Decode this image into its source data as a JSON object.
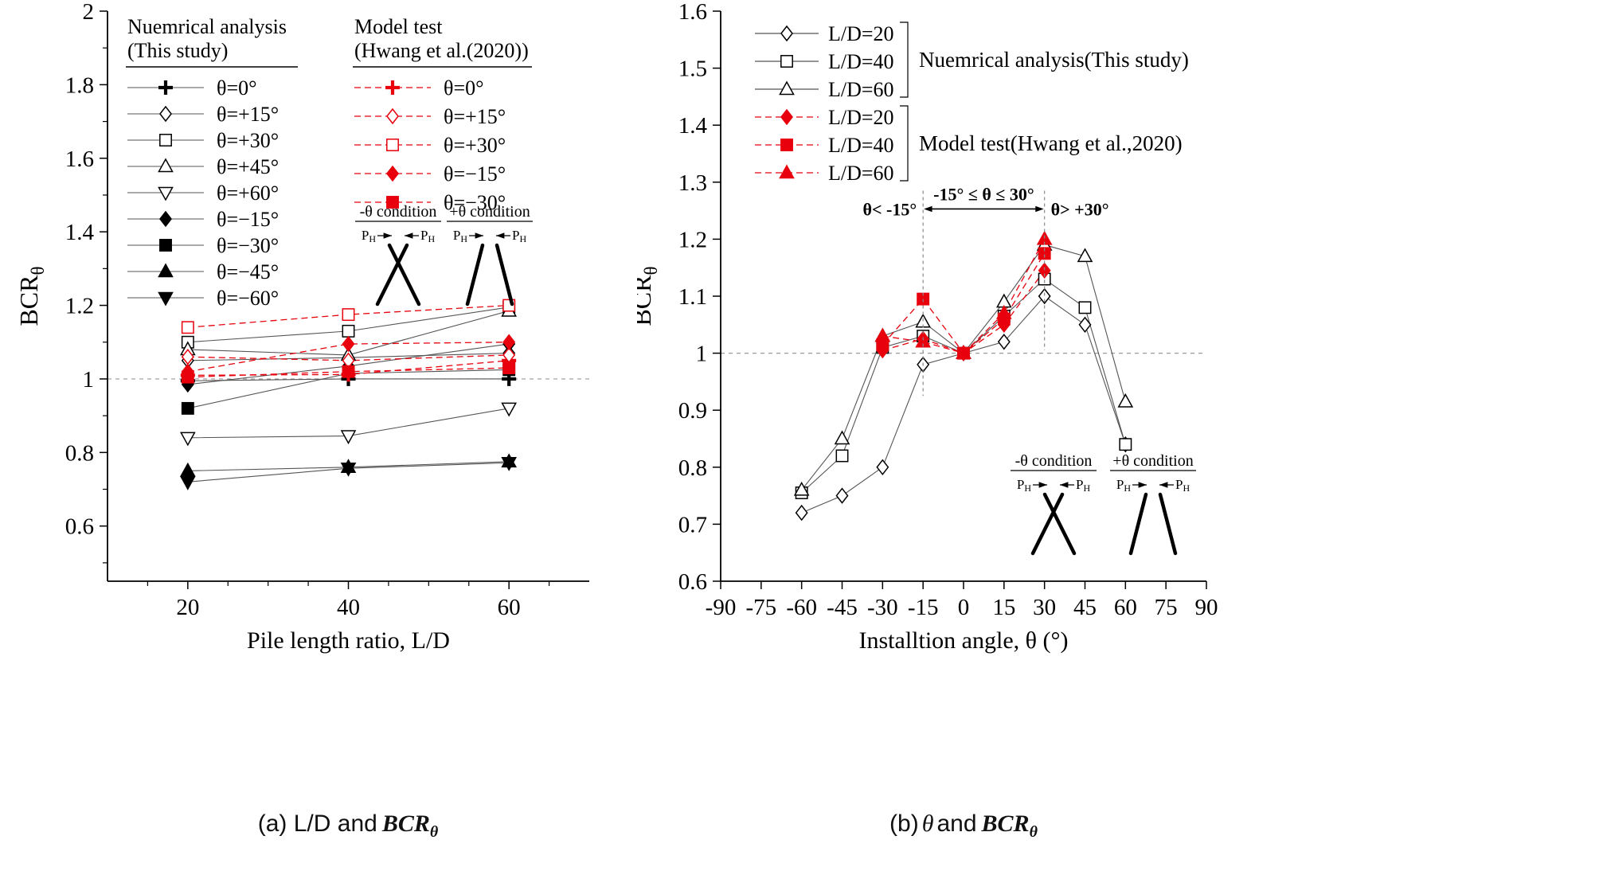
{
  "page": {
    "background": "#ffffff"
  },
  "colors": {
    "axis": "#000000",
    "black_series": "#000000",
    "black_line": "#555555",
    "red_series": "#e8000d",
    "refline": "#999999",
    "vline": "#888888"
  },
  "captions": {
    "a_prefix": "(a) L/D and",
    "b_prefix": "(b)",
    "b_theta": "θ",
    "b_and": "and",
    "bcr_main": "BCR",
    "bcr_sub": "θ"
  },
  "insets": {
    "neg_title": "-θ condition",
    "pos_title": "+θ condition",
    "load_main": "P",
    "load_sub": "H"
  },
  "chart_data": [
    {
      "id": "a",
      "type": "line",
      "title": "",
      "xlabel": "Pile length ratio, L/D",
      "ylabel_main": "BCR",
      "ylabel_sub": "θ",
      "xlim": [
        10,
        70
      ],
      "ylim": [
        0.45,
        2.0
      ],
      "xticks": {
        "values": [
          20,
          40,
          60
        ],
        "labels": [
          "20",
          "40",
          "60"
        ]
      },
      "xminor": [
        15,
        25,
        30,
        35,
        45,
        50,
        55,
        65
      ],
      "yticks": {
        "values": [
          0.6,
          0.8,
          1.0,
          1.2,
          1.4,
          1.6,
          1.8,
          2.0
        ],
        "labels": [
          "0.6",
          "0.8",
          "1",
          "1.2",
          "1.4",
          "1.6",
          "1.8",
          "2"
        ]
      },
      "yminor": [
        0.5,
        0.7,
        0.9,
        1.1,
        1.3,
        1.5,
        1.7,
        1.9
      ],
      "refline_y": 1.0,
      "x": [
        20,
        40,
        60
      ],
      "series": [
        {
          "name": "θ=0°",
          "group": "numerical",
          "color": "#000000",
          "dash": false,
          "marker": "plus",
          "filled": true,
          "values": [
            0.995,
            1.0,
            1.0
          ]
        },
        {
          "name": "θ=+15°",
          "group": "numerical",
          "color": "#000000",
          "dash": false,
          "marker": "diamond",
          "filled": false,
          "values": [
            1.05,
            1.058,
            1.07
          ]
        },
        {
          "name": "θ=+30°",
          "group": "numerical",
          "color": "#000000",
          "dash": false,
          "marker": "square",
          "filled": false,
          "values": [
            1.1,
            1.13,
            1.195
          ]
        },
        {
          "name": "θ=+45°",
          "group": "numerical",
          "color": "#000000",
          "dash": false,
          "marker": "triangle-up",
          "filled": false,
          "values": [
            1.08,
            1.065,
            1.185
          ]
        },
        {
          "name": "θ=+60°",
          "group": "numerical",
          "color": "#000000",
          "dash": false,
          "marker": "triangle-down",
          "filled": false,
          "values": [
            0.84,
            0.845,
            0.92
          ]
        },
        {
          "name": "θ=−15°",
          "group": "numerical",
          "color": "#000000",
          "dash": false,
          "marker": "diamond",
          "filled": true,
          "values": [
            0.985,
            1.035,
            1.095
          ]
        },
        {
          "name": "θ=−30°",
          "group": "numerical",
          "color": "#000000",
          "dash": false,
          "marker": "square",
          "filled": true,
          "values": [
            0.92,
            1.015,
            1.025
          ]
        },
        {
          "name": "θ=−45°",
          "group": "numerical",
          "color": "#000000",
          "dash": false,
          "marker": "triangle-up",
          "filled": true,
          "values": [
            0.75,
            0.76,
            0.775
          ]
        },
        {
          "name": "θ=−60°",
          "group": "numerical",
          "color": "#000000",
          "dash": false,
          "marker": "triangle-down",
          "filled": true,
          "values": [
            0.72,
            0.757,
            0.772
          ]
        },
        {
          "name": "θ=0°",
          "group": "model-test",
          "color": "#e8000d",
          "dash": true,
          "marker": "plus",
          "filled": true,
          "values": [
            1.01,
            1.012,
            1.05
          ]
        },
        {
          "name": "θ=+15°",
          "group": "model-test",
          "color": "#e8000d",
          "dash": true,
          "marker": "diamond",
          "filled": false,
          "values": [
            1.06,
            1.05,
            1.065
          ]
        },
        {
          "name": "θ=+30°",
          "group": "model-test",
          "color": "#e8000d",
          "dash": true,
          "marker": "square",
          "filled": false,
          "values": [
            1.14,
            1.175,
            1.2
          ]
        },
        {
          "name": "θ=−15°",
          "group": "model-test",
          "color": "#e8000d",
          "dash": true,
          "marker": "diamond",
          "filled": true,
          "values": [
            1.02,
            1.095,
            1.1
          ]
        },
        {
          "name": "θ=−30°",
          "group": "model-test",
          "color": "#e8000d",
          "dash": true,
          "marker": "square",
          "filled": true,
          "values": [
            1.005,
            1.02,
            1.03
          ]
        }
      ],
      "legend": {
        "col1_title": [
          "Nuemrical analysis",
          "(This study)"
        ],
        "col1_series": [
          0,
          1,
          2,
          3,
          4,
          5,
          6,
          7,
          8
        ],
        "col2_title": [
          "Model test",
          "(Hwang et al.(2020))"
        ],
        "col2_series": [
          9,
          10,
          11,
          12,
          13
        ]
      }
    },
    {
      "id": "b",
      "type": "line",
      "title": "",
      "xlabel": "Installtion angle, θ (°)",
      "ylabel_main": "BCR",
      "ylabel_sub": "θ",
      "xlim": [
        -90,
        90
      ],
      "ylim": [
        0.6,
        1.6
      ],
      "xticks": {
        "values": [
          -90,
          -75,
          -60,
          -45,
          -30,
          -15,
          0,
          15,
          30,
          45,
          60,
          75,
          90
        ],
        "labels": [
          "-90",
          "-75",
          "-60",
          "-45",
          "-30",
          "-15",
          "0",
          "15",
          "30",
          "45",
          "60",
          "75",
          "90"
        ]
      },
      "yticks": {
        "values": [
          0.6,
          0.7,
          0.8,
          0.9,
          1.0,
          1.1,
          1.2,
          1.3,
          1.4,
          1.5,
          1.6
        ],
        "labels": [
          "0.6",
          "0.7",
          "0.8",
          "0.9",
          "1",
          "1.1",
          "1.2",
          "1.3",
          "1.4",
          "1.5",
          "1.6"
        ]
      },
      "refline_y": 1.0,
      "series": [
        {
          "name": "L/D=20",
          "group": "numerical",
          "color": "#000000",
          "dash": false,
          "marker": "diamond",
          "filled": false,
          "x": [
            -60,
            -45,
            -30,
            -15,
            0,
            15,
            30,
            45,
            60
          ],
          "values": [
            0.72,
            0.75,
            0.8,
            0.98,
            1.0,
            1.02,
            1.1,
            1.05,
            0.84
          ]
        },
        {
          "name": "L/D=40",
          "group": "numerical",
          "color": "#000000",
          "dash": false,
          "marker": "square",
          "filled": false,
          "x": [
            -60,
            -45,
            -30,
            -15,
            0,
            15,
            30,
            45,
            60
          ],
          "values": [
            0.755,
            0.82,
            1.01,
            1.03,
            1.0,
            1.065,
            1.13,
            1.08,
            0.84
          ]
        },
        {
          "name": "L/D=60",
          "group": "numerical",
          "color": "#000000",
          "dash": false,
          "marker": "triangle-up",
          "filled": false,
          "x": [
            -60,
            -45,
            -30,
            -15,
            0,
            15,
            30,
            45,
            60
          ],
          "values": [
            0.76,
            0.85,
            1.03,
            1.055,
            1.0,
            1.09,
            1.19,
            1.17,
            0.915
          ]
        },
        {
          "name": "L/D=20",
          "group": "model-test",
          "color": "#e8000d",
          "dash": true,
          "marker": "diamond",
          "filled": true,
          "x": [
            -30,
            -15,
            0,
            15,
            30
          ],
          "values": [
            1.005,
            1.025,
            1.0,
            1.05,
            1.145
          ]
        },
        {
          "name": "L/D=40",
          "group": "model-test",
          "color": "#e8000d",
          "dash": true,
          "marker": "square",
          "filled": true,
          "x": [
            -30,
            -15,
            0,
            15,
            30
          ],
          "values": [
            1.015,
            1.095,
            1.0,
            1.06,
            1.175
          ]
        },
        {
          "name": "L/D=60",
          "group": "model-test",
          "color": "#e8000d",
          "dash": true,
          "marker": "triangle-up",
          "filled": true,
          "x": [
            -30,
            -15,
            0,
            15,
            30
          ],
          "values": [
            1.03,
            1.02,
            1.0,
            1.07,
            1.2
          ]
        }
      ],
      "legend_groups": [
        {
          "label": "Nuemrical analysis(This study)",
          "series": [
            0,
            1,
            2
          ]
        },
        {
          "label": "Model test(Hwang et al.,2020)",
          "series": [
            3,
            4,
            5
          ]
        }
      ],
      "annotations": {
        "left": "θ< -15°",
        "mid": "-15° ≤ θ ≤ 30°",
        "right": "θ> +30°",
        "vlines": [
          -15,
          30
        ],
        "arrow_from": -15,
        "arrow_to": 30,
        "arrow_y": 1.253
      }
    }
  ]
}
